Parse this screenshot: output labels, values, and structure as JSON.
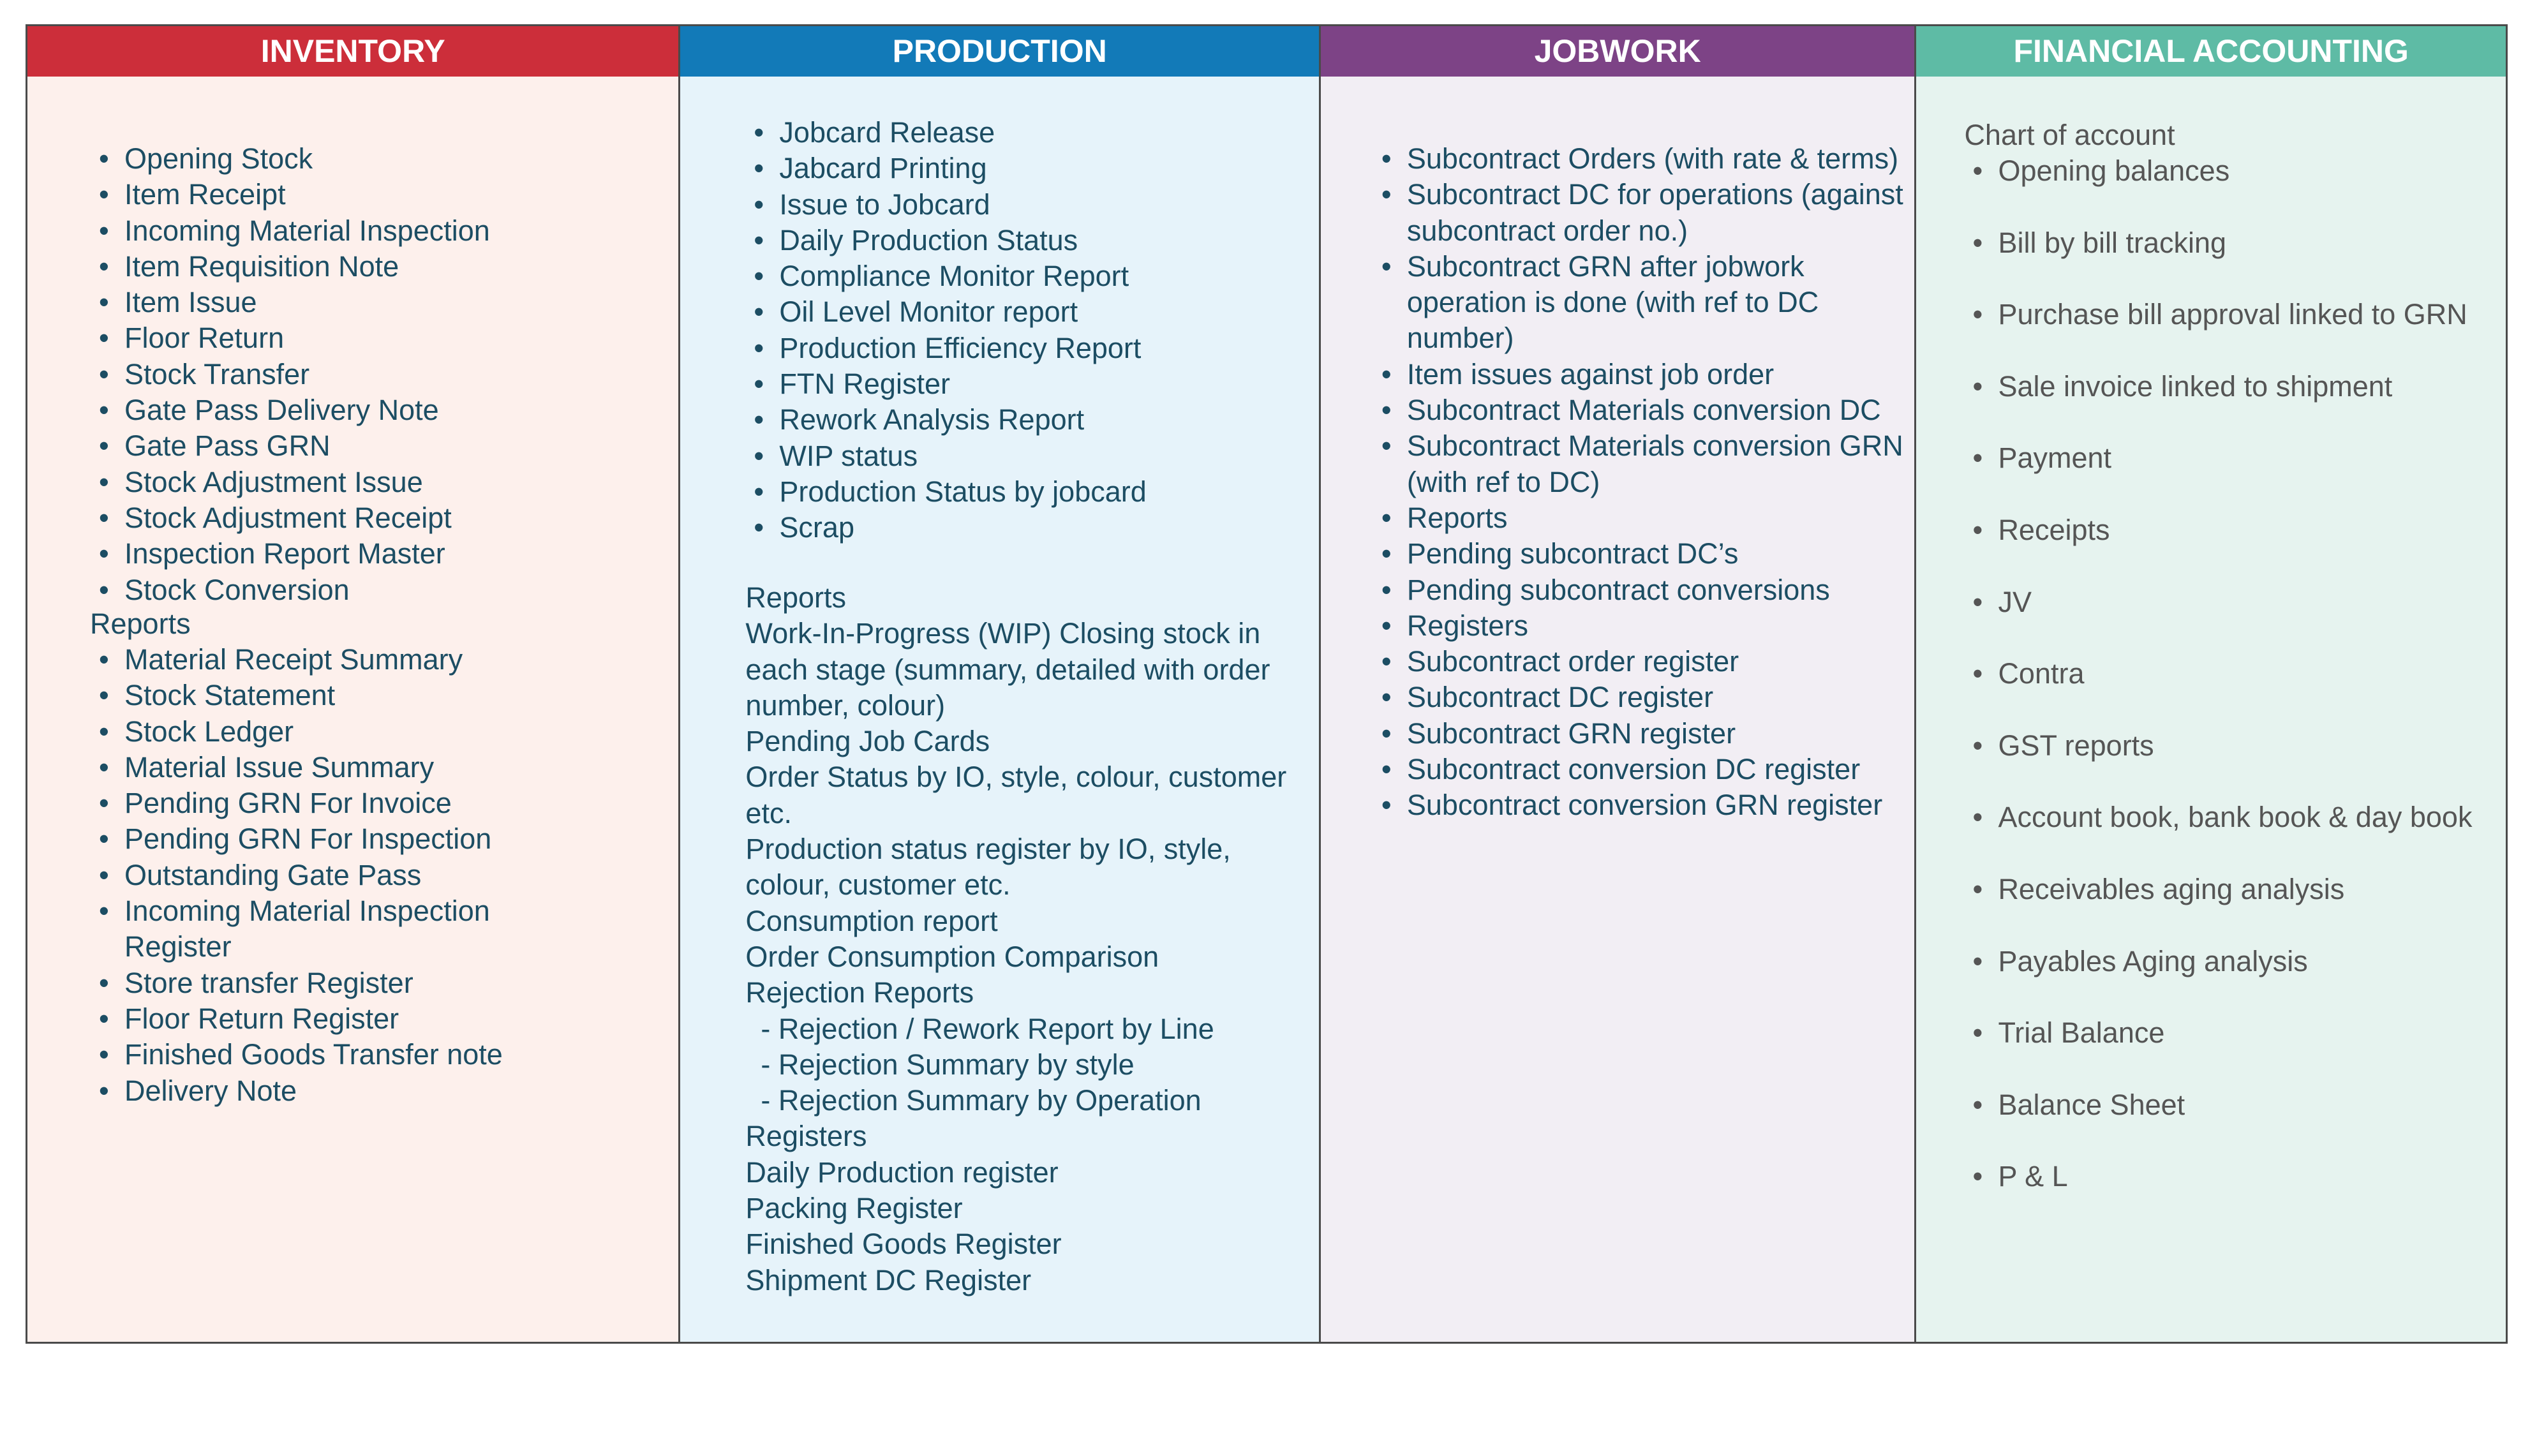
{
  "columns": [
    {
      "title": "INVENTORY",
      "color": "#cc2e3a",
      "items": [
        "Opening Stock",
        "Item Receipt",
        "Incoming Material Inspection",
        "Item Requisition Note",
        "Item Issue",
        "Floor Return",
        "Stock Transfer",
        "Gate Pass Delivery Note",
        "Gate Pass GRN",
        "Stock Adjustment Issue",
        "Stock Adjustment Receipt",
        "Inspection Report Master",
        "Stock Conversion"
      ],
      "reports_label": "Reports",
      "reports": [
        "Material Receipt Summary",
        "Stock Statement",
        "Stock Ledger",
        "Material Issue Summary",
        "Pending GRN For Invoice",
        "Pending GRN For Inspection",
        "Outstanding Gate Pass",
        "Incoming Material Inspection Register",
        "Store transfer Register",
        "Floor Return Register",
        "Finished Goods Transfer note",
        "Delivery Note"
      ]
    },
    {
      "title": "PRODUCTION",
      "color": "#127ab8",
      "items": [
        "Jobcard Release",
        "Jabcard Printing",
        "Issue to Jobcard",
        "Daily Production Status",
        "Compliance Monitor Report",
        "Oil Level Monitor report",
        "Production Efficiency Report",
        "FTN Register",
        "Rework Analysis Report",
        "WIP status",
        "Production Status by jobcard",
        "Scrap"
      ],
      "text_lines": [
        "Reports",
        "Work-In-Progress (WIP) Closing stock in each stage (summary, detailed with order number, colour)",
        "Pending Job Cards",
        "Order Status by IO, style, colour, customer etc.",
        "Production status register by IO, style, colour, customer etc.",
        "Consumption report",
        "Order Consumption Comparison",
        "Rejection Reports",
        "- Rejection / Rework Report by Line",
        "- Rejection Summary by style",
        "- Rejection Summary by Operation",
        "Registers",
        "Daily Production register",
        "Packing Register",
        "Finished Goods Register",
        "Shipment DC Register"
      ]
    },
    {
      "title": "JOBWORK",
      "color": "#7d4386",
      "items": [
        "Subcontract Orders (with rate & terms)",
        "Subcontract DC for operations (against subcontract order no.)",
        "Subcontract GRN after jobwork operation is done (with ref to DC number)",
        "Item issues against job order",
        "Subcontract Materials conversion DC",
        "Subcontract Materials conversion GRN (with ref to DC)",
        "Reports",
        "Pending subcontract DC’s",
        "Pending subcontract conversions",
        "Registers",
        "Subcontract order register",
        "Subcontract DC register",
        "Subcontract GRN register",
        "Subcontract conversion DC register",
        "Subcontract conversion GRN register"
      ]
    },
    {
      "title": "FINANCIAL ACCOUNTING",
      "color": "#5ebba5",
      "intro": "Chart of account",
      "items": [
        "Opening balances",
        "Bill by bill tracking",
        "Purchase bill approval linked to GRN",
        "Sale invoice linked to shipment",
        "Payment",
        "Receipts",
        "JV",
        "Contra",
        "GST reports",
        "Account book, bank book & day book",
        "Receivables aging analysis",
        "Payables Aging analysis",
        "Trial Balance",
        "Balance Sheet",
        "P & L"
      ]
    }
  ]
}
